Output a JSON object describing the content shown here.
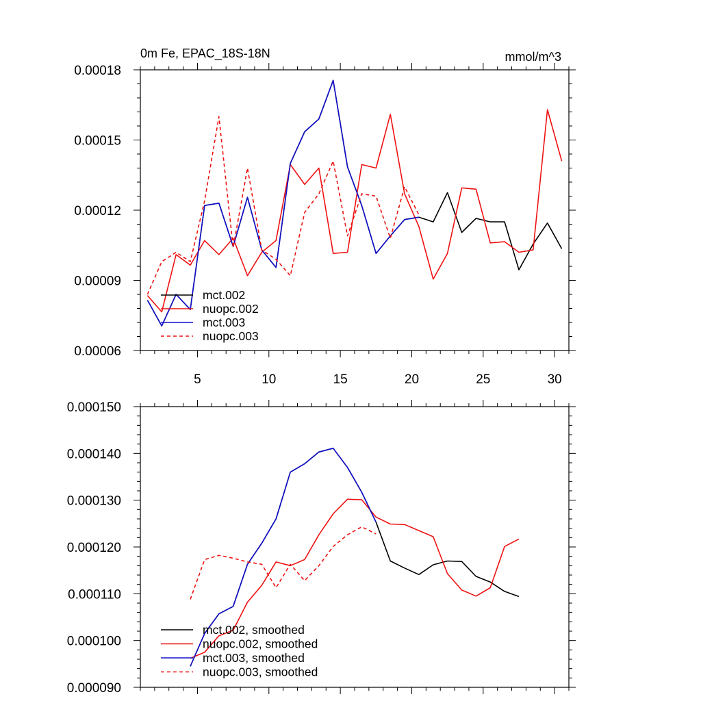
{
  "chart_data": [
    {
      "type": "line",
      "title": "0m Fe, EPAC_18S-18N",
      "units": "mmol/m^3",
      "xlabel": "",
      "ylabel": "",
      "xlim": [
        1,
        31
      ],
      "ylim": [
        6e-05,
        0.00018
      ],
      "yticks": [
        6e-05,
        9e-05,
        0.00012,
        0.00015,
        0.00018
      ],
      "ytick_labels": [
        "0.00006",
        "0.00009",
        "0.00012",
        "0.00015",
        "0.00018"
      ],
      "xticks": [
        5,
        10,
        15,
        20,
        25,
        30
      ],
      "xtick_labels": [
        "5",
        "10",
        "15",
        "20",
        "25",
        "30"
      ],
      "legend_position": "bottom-left",
      "series": [
        {
          "name": "mct.002",
          "color": "#000000",
          "dash": false,
          "x": [
            1.5,
            2.5,
            3.5,
            4.5,
            5.5,
            6.5,
            7.5,
            8.5,
            9.5,
            10.5,
            11.5,
            12.5,
            13.5,
            14.5,
            15.5,
            16.5,
            17.5,
            18.5,
            19.5,
            20.5,
            21.5,
            22.5,
            23.5,
            24.5,
            25.5,
            26.5,
            27.5,
            28.5,
            29.5,
            30.5
          ],
          "values": [
            8.15e-05,
            7.05e-05,
            8.4e-05,
            7.75e-05,
            0.000122,
            0.000123,
            0.0001045,
            0.0001255,
            0.000103,
            9.55e-05,
            0.00014,
            0.0001535,
            0.000159,
            0.0001755,
            0.0001385,
            0.000122,
            0.0001015,
            0.000109,
            0.000116,
            0.000117,
            0.000115,
            0.0001275,
            0.0001105,
            0.0001165,
            0.000115,
            0.000115,
            9.45e-05,
            0.0001055,
            0.0001145,
            0.0001035
          ]
        },
        {
          "name": "nuopc.002",
          "color": "#ee1111",
          "dash": false,
          "x": [
            1.5,
            2.5,
            3.5,
            4.5,
            5.5,
            6.5,
            7.5,
            8.5,
            9.5,
            10.5,
            11.5,
            12.5,
            13.5,
            14.5,
            15.5,
            16.5,
            17.5,
            18.5,
            19.5,
            20.5,
            21.5,
            22.5,
            23.5,
            24.5,
            25.5,
            26.5,
            27.5,
            28.5,
            29.5,
            30.5
          ],
          "values": [
            8.35e-05,
            7.65e-05,
            0.000101,
            9.65e-05,
            0.000107,
            0.000101,
            0.000108,
            9.2e-05,
            0.000102,
            0.000107,
            0.0001395,
            0.000131,
            0.000138,
            0.0001015,
            0.000102,
            0.0001395,
            0.000138,
            0.000161,
            0.000127,
            0.000113,
            9.05e-05,
            0.0001015,
            0.0001295,
            0.000129,
            0.000106,
            0.0001065,
            0.000102,
            0.000103,
            0.000163,
            0.000141
          ]
        },
        {
          "name": "mct.003",
          "color": "#1111cc",
          "dash": false,
          "x": [
            1.5,
            2.5,
            3.5,
            4.5,
            5.5,
            6.5,
            7.5,
            8.5,
            9.5,
            10.5,
            11.5,
            12.5,
            13.5,
            14.5,
            15.5,
            16.5,
            17.5,
            18.5,
            19.5,
            20.5
          ],
          "values": [
            8.15e-05,
            7.05e-05,
            8.4e-05,
            7.75e-05,
            0.000122,
            0.000123,
            0.0001045,
            0.0001255,
            0.000103,
            9.55e-05,
            0.00014,
            0.0001535,
            0.000159,
            0.0001755,
            0.0001385,
            0.000122,
            0.0001015,
            0.000109,
            0.000116,
            0.000117
          ]
        },
        {
          "name": "nuopc.003",
          "color": "#ee1111",
          "dash": true,
          "x": [
            1.5,
            2.5,
            3.5,
            4.5,
            5.5,
            6.5,
            7.5,
            8.5,
            9.5,
            10.5,
            11.5,
            12.5,
            13.5,
            14.5,
            15.5,
            16.5,
            17.5,
            18.5,
            19.5,
            20.5
          ],
          "values": [
            8.4e-05,
            9.8e-05,
            0.000102,
            9.8e-05,
            0.000124,
            0.00016,
            0.000104,
            0.000138,
            0.000103,
            9.9e-05,
            9.2e-05,
            0.000119,
            0.000127,
            0.000141,
            0.000109,
            0.000127,
            0.000126,
            0.000108,
            0.00013,
            0.000118
          ]
        }
      ]
    },
    {
      "type": "line",
      "title": "",
      "xlabel": "",
      "ylabel": "",
      "xlim": [
        1,
        31
      ],
      "ylim": [
        9e-05,
        0.00015
      ],
      "yticks": [
        9e-05,
        0.0001,
        0.00011,
        0.00012,
        0.00013,
        0.00014,
        0.00015
      ],
      "ytick_labels": [
        "0.000090",
        "0.000100",
        "0.000110",
        "0.000120",
        "0.000130",
        "0.000140",
        "0.000150"
      ],
      "xticks": [
        5,
        10,
        15,
        20,
        25,
        30
      ],
      "xtick_labels": [],
      "legend_position": "bottom-left",
      "series": [
        {
          "name": "mct.002, smoothed",
          "color": "#000000",
          "dash": false,
          "x": [
            4.5,
            5.5,
            6.5,
            7.5,
            8.5,
            9.5,
            10.5,
            11.5,
            12.5,
            13.5,
            14.5,
            15.5,
            16.5,
            17.5,
            18.5,
            19.5,
            20.5,
            21.5,
            22.5,
            23.5,
            24.5,
            25.5,
            26.5,
            27.5
          ],
          "values": [
            9.45e-05,
            0.0001015,
            0.0001057,
            0.0001073,
            0.0001163,
            0.0001208,
            0.000126,
            0.000136,
            0.0001378,
            0.0001403,
            0.0001411,
            0.000137,
            0.0001317,
            0.0001253,
            0.000117,
            0.0001155,
            0.0001141,
            0.0001162,
            0.000117,
            0.0001169,
            0.0001137,
            0.0001125,
            0.0001105,
            0.0001094
          ]
        },
        {
          "name": "nuopc.002, smoothed",
          "color": "#ee1111",
          "dash": false,
          "x": [
            4.5,
            5.5,
            6.5,
            7.5,
            8.5,
            9.5,
            10.5,
            11.5,
            12.5,
            13.5,
            14.5,
            15.5,
            16.5,
            17.5,
            18.5,
            19.5,
            20.5,
            21.5,
            22.5,
            23.5,
            24.5,
            25.5,
            26.5,
            27.5
          ],
          "values": [
            9.62e-05,
            9.75e-05,
            0.000101,
            0.0001022,
            0.0001082,
            0.0001118,
            0.0001168,
            0.000116,
            0.0001173,
            0.0001226,
            0.0001271,
            0.0001302,
            0.0001301,
            0.0001264,
            0.0001249,
            0.0001248,
            0.0001235,
            0.0001222,
            0.0001143,
            0.0001108,
            0.0001095,
            0.0001113,
            0.0001201,
            0.0001217
          ]
        },
        {
          "name": "mct.003, smoothed",
          "color": "#1111cc",
          "dash": false,
          "x": [
            4.5,
            5.5,
            6.5,
            7.5,
            8.5,
            9.5,
            10.5,
            11.5,
            12.5,
            13.5,
            14.5,
            15.5,
            16.5,
            17.5
          ],
          "values": [
            9.45e-05,
            0.0001015,
            0.0001057,
            0.0001073,
            0.0001163,
            0.0001208,
            0.000126,
            0.000136,
            0.0001378,
            0.0001403,
            0.0001411,
            0.000137,
            0.0001317,
            0.0001253
          ]
        },
        {
          "name": "nuopc.003, smoothed",
          "color": "#ee1111",
          "dash": true,
          "x": [
            4.5,
            5.5,
            6.5,
            7.5,
            8.5,
            9.5,
            10.5,
            11.5,
            12.5,
            13.5,
            14.5,
            15.5,
            16.5,
            17.5
          ],
          "values": [
            0.0001088,
            0.0001173,
            0.0001182,
            0.0001176,
            0.0001168,
            0.0001163,
            0.0001113,
            0.0001163,
            0.0001128,
            0.000116,
            0.0001201,
            0.0001226,
            0.0001243,
            0.0001228
          ]
        }
      ]
    }
  ]
}
